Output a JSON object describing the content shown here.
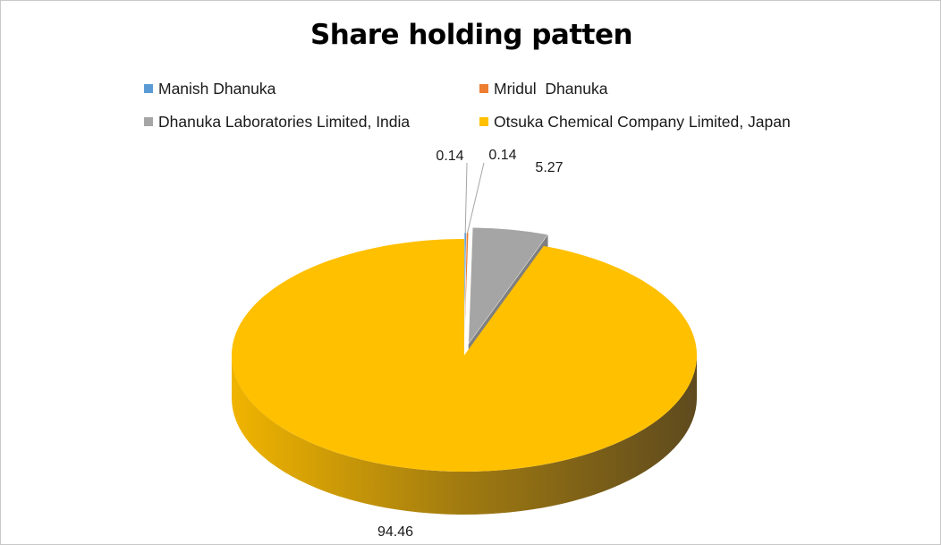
{
  "chart_data": {
    "type": "pie",
    "title": "Share holding patten",
    "labels": [
      "Manish Dhanuka",
      "Mridul  Dhanuka",
      "Dhanuka Laboratories Limited, India",
      "Otsuka Chemical Company Limited, Japan"
    ],
    "values": [
      0.14,
      0.14,
      5.27,
      94.46
    ],
    "value_labels": [
      "0.14",
      "0.14",
      "5.27",
      "94.46"
    ],
    "colors": [
      "#5b9bd5",
      "#ed7d31",
      "#a5a5a5",
      "#ffc000"
    ],
    "style": "3d-exploded",
    "legend_position": "top"
  }
}
